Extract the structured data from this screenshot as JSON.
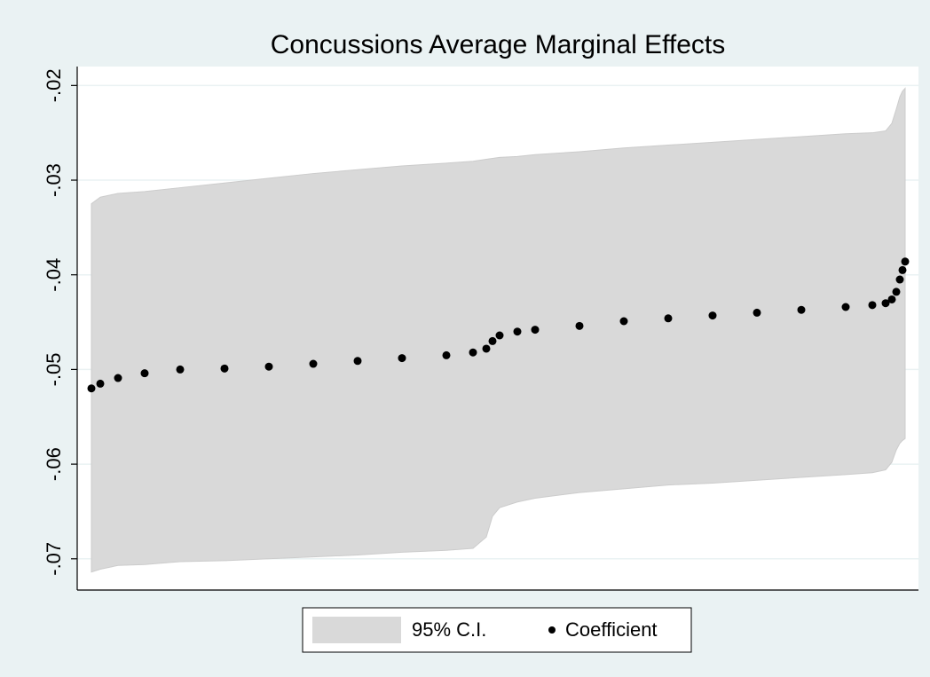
{
  "chart_data": {
    "type": "range_scatter",
    "title": "Concussions Average Marginal Effects",
    "x": [
      0,
      10,
      30,
      60,
      100,
      150,
      200,
      250,
      300,
      350,
      400,
      430,
      445,
      452,
      460,
      480,
      500,
      550,
      600,
      650,
      700,
      750,
      800,
      850,
      880,
      895,
      902,
      907,
      911,
      914,
      917
    ],
    "xlim": [
      -16,
      932
    ],
    "series": [
      {
        "name": "95% C.I.",
        "color": "#d9d9d9",
        "upper": [
          -0.0325,
          -0.0318,
          -0.0314,
          -0.0312,
          -0.0308,
          -0.0303,
          -0.0298,
          -0.0293,
          -0.0289,
          -0.0285,
          -0.0282,
          -0.028,
          -0.0278,
          -0.0277,
          -0.0276,
          -0.0275,
          -0.0273,
          -0.027,
          -0.0266,
          -0.0263,
          -0.026,
          -0.0257,
          -0.0254,
          -0.0251,
          -0.025,
          -0.0248,
          -0.024,
          -0.0225,
          -0.0212,
          -0.0206,
          -0.0203
        ],
        "lower": [
          -0.0714,
          -0.0711,
          -0.0707,
          -0.0706,
          -0.0703,
          -0.0702,
          -0.07,
          -0.0698,
          -0.0696,
          -0.0693,
          -0.0691,
          -0.0689,
          -0.0677,
          -0.0655,
          -0.0646,
          -0.064,
          -0.0636,
          -0.063,
          -0.0626,
          -0.0622,
          -0.062,
          -0.0617,
          -0.0614,
          -0.0611,
          -0.0609,
          -0.0606,
          -0.0598,
          -0.0585,
          -0.0578,
          -0.0575,
          -0.0573
        ]
      },
      {
        "name": "Coefficient",
        "color": "#000000",
        "values": [
          -0.052,
          -0.0515,
          -0.0509,
          -0.0504,
          -0.05,
          -0.0499,
          -0.0497,
          -0.0494,
          -0.0491,
          -0.0488,
          -0.0485,
          -0.0482,
          -0.0478,
          -0.047,
          -0.0464,
          -0.046,
          -0.0458,
          -0.0454,
          -0.0449,
          -0.0446,
          -0.0443,
          -0.044,
          -0.0437,
          -0.0434,
          -0.0432,
          -0.043,
          -0.0426,
          -0.0418,
          -0.0405,
          -0.0395,
          -0.0386
        ]
      }
    ],
    "ylim": [
      -0.0733,
      -0.018
    ],
    "yticks": [
      {
        "value": -0.02,
        "label": "-.02"
      },
      {
        "value": -0.03,
        "label": "-.03"
      },
      {
        "value": -0.04,
        "label": "-.04"
      },
      {
        "value": -0.05,
        "label": "-.05"
      },
      {
        "value": -0.06,
        "label": "-.06"
      },
      {
        "value": -0.07,
        "label": "-.07"
      }
    ],
    "grid": true
  }
}
